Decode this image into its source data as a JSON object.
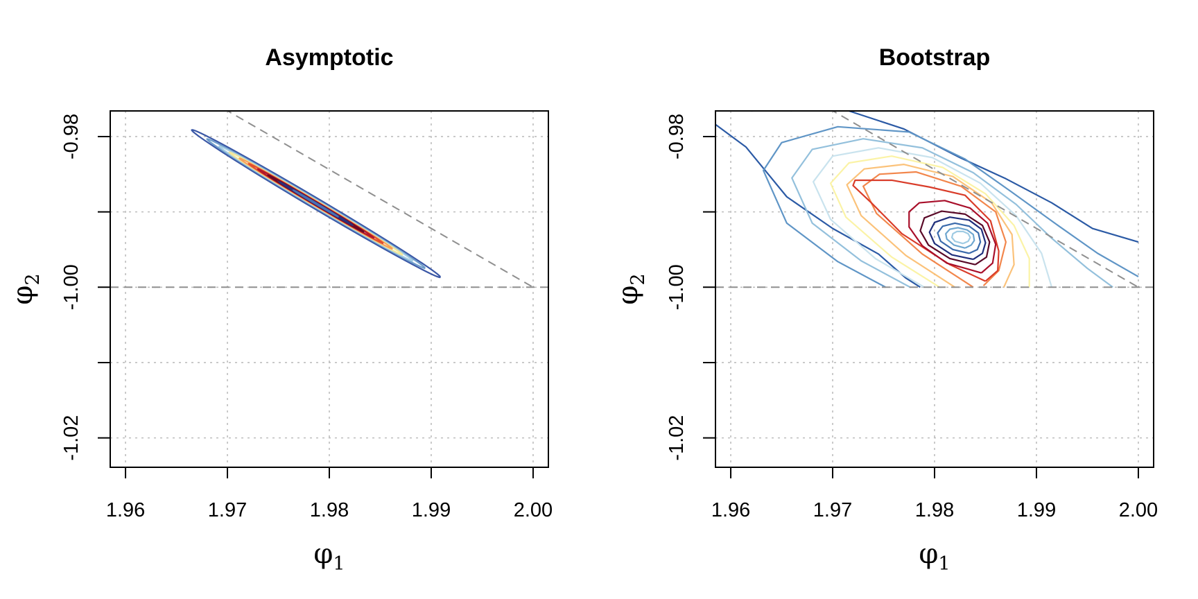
{
  "chart_data": [
    {
      "type": "contour",
      "title": "Asymptotic",
      "xlabel": {
        "base": "φ",
        "sub": "1"
      },
      "ylabel": {
        "base": "φ",
        "sub": "2"
      },
      "xlim": [
        1.9585,
        2.0015
      ],
      "ylim": [
        -1.0239,
        -0.9766
      ],
      "xticks": [
        1.96,
        1.97,
        1.98,
        1.99,
        2.0
      ],
      "xtick_labels": [
        "1.96",
        "1.97",
        "1.98",
        "1.99",
        "2.00"
      ],
      "yticks": [
        -0.98,
        -0.99,
        -1.0,
        -1.01,
        -1.02
      ],
      "ytick_labels": [
        "-0.98",
        "",
        "-1.00",
        "",
        "-1.02"
      ],
      "grid": true,
      "reference_lines": [
        {
          "type": "segment",
          "from": [
            1.9685,
            -0.9754
          ],
          "to": [
            2.0,
            -1.0
          ]
        },
        {
          "type": "hline",
          "y": -1.0
        }
      ],
      "level_colors": [
        "#3a57a6",
        "#6d9cc9",
        "#a5cde3",
        "#f3e89a",
        "#f6a25c",
        "#e1502f",
        "#b2182b",
        "#6a0a24",
        "#2d2f7a",
        "#4a71b3"
      ],
      "contours": [
        {
          "level": 1,
          "shape": "ellipse",
          "center": [
            1.9787,
            -0.9889
          ],
          "half_major_x": 0.0122,
          "half_width_y": 0.0008
        },
        {
          "level": 2,
          "shape": "ellipse",
          "center": [
            1.9787,
            -0.9889
          ],
          "half_major_x": 0.0107,
          "half_width_y": 0.0006
        },
        {
          "level": 3,
          "shape": "ellipse",
          "center": [
            1.9787,
            -0.9889
          ],
          "half_major_x": 0.0095,
          "half_width_y": 0.0005
        },
        {
          "level": 4,
          "shape": "ellipse",
          "center": [
            1.9787,
            -0.9889
          ],
          "half_major_x": 0.0085,
          "half_width_y": 0.00042
        },
        {
          "level": 5,
          "shape": "ellipse",
          "center": [
            1.9787,
            -0.9889
          ],
          "half_major_x": 0.0075,
          "half_width_y": 0.00036
        },
        {
          "level": 6,
          "shape": "ellipse",
          "center": [
            1.9787,
            -0.9889
          ],
          "half_major_x": 0.0066,
          "half_width_y": 0.0003
        },
        {
          "level": 7,
          "shape": "ellipse",
          "center": [
            1.9787,
            -0.9889
          ],
          "half_major_x": 0.0057,
          "half_width_y": 0.00025
        },
        {
          "level": 8,
          "shape": "ellipse",
          "center": [
            1.9787,
            -0.9889
          ],
          "half_major_x": 0.0047,
          "half_width_y": 0.0002
        },
        {
          "level": 9,
          "shape": "ellipse",
          "center": [
            1.9787,
            -0.9889
          ],
          "half_major_x": 0.0036,
          "half_width_y": 0.00014
        },
        {
          "level": 10,
          "shape": "ellipse",
          "center": [
            1.9787,
            -0.9889
          ],
          "half_major_x": 0.0022,
          "half_width_y": 8e-05
        }
      ]
    },
    {
      "type": "contour",
      "title": "Bootstrap",
      "xlabel": {
        "base": "φ",
        "sub": "1"
      },
      "ylabel": {
        "base": "φ",
        "sub": "2"
      },
      "xlim": [
        1.9585,
        2.0015
      ],
      "ylim": [
        -1.0239,
        -0.9766
      ],
      "xticks": [
        1.96,
        1.97,
        1.98,
        1.99,
        2.0
      ],
      "xtick_labels": [
        "1.96",
        "1.97",
        "1.98",
        "1.99",
        "2.00"
      ],
      "yticks": [
        -0.98,
        -0.99,
        -1.0,
        -1.01,
        -1.02
      ],
      "ytick_labels": [
        "-0.98",
        "",
        "-1.00",
        "",
        "-1.02"
      ],
      "grid": true,
      "reference_lines": [
        {
          "type": "segment",
          "from": [
            1.9685,
            -0.9754
          ],
          "to": [
            2.0,
            -1.0
          ]
        },
        {
          "type": "hline",
          "y": -1.0
        }
      ],
      "level_colors": [
        "#2b5aa5",
        "#5f95c6",
        "#93c0dc",
        "#c9e3ee",
        "#fbf3a6",
        "#fbc27a",
        "#f2864b",
        "#d93c29",
        "#a80f2a",
        "#5a0a28",
        "#1f2f7c",
        "#3a6aab",
        "#6ea6cf",
        "#9fcbe3"
      ],
      "contours": [
        {
          "level": 1,
          "points": [
            [
              1.9585,
              -0.9784
            ],
            [
              1.9615,
              -0.9814
            ],
            [
              1.9655,
              -0.988
            ],
            [
              1.97,
              -0.9922
            ],
            [
              1.9745,
              -0.9956
            ],
            [
              1.9772,
              -0.9988
            ],
            [
              1.9786,
              -1.0
            ]
          ]
        },
        {
          "level": 1,
          "points": [
            [
              1.9716,
              -0.9766
            ],
            [
              1.977,
              -0.979
            ],
            [
              1.9825,
              -0.9828
            ],
            [
              1.987,
              -0.9856
            ],
            [
              1.9915,
              -0.9888
            ],
            [
              1.9955,
              -0.9922
            ],
            [
              2.0,
              -0.994
            ]
          ]
        },
        {
          "level": 1,
          "points": [
            [
              1.962,
              -0.9766
            ],
            [
              1.964,
              -0.9765
            ],
            [
              1.966,
              -0.9766
            ]
          ]
        },
        {
          "level": 2,
          "points": [
            [
              1.9752,
              -1.0
            ],
            [
              1.9705,
              -0.9966
            ],
            [
              1.9655,
              -0.9915
            ],
            [
              1.9632,
              -0.9845
            ],
            [
              1.965,
              -0.9808
            ],
            [
              1.9705,
              -0.9787
            ],
            [
              1.9775,
              -0.9794
            ],
            [
              1.983,
              -0.983
            ],
            [
              1.9875,
              -0.9873
            ],
            [
              1.9918,
              -0.9915
            ],
            [
              1.996,
              -0.9955
            ],
            [
              2.0,
              -0.9986
            ]
          ]
        },
        {
          "level": 3,
          "points": [
            [
              1.9776,
              -1.0
            ],
            [
              1.9728,
              -0.9965
            ],
            [
              1.968,
              -0.9915
            ],
            [
              1.966,
              -0.9855
            ],
            [
              1.968,
              -0.9817
            ],
            [
              1.973,
              -0.9803
            ],
            [
              1.9788,
              -0.9815
            ],
            [
              1.9838,
              -0.9848
            ],
            [
              1.988,
              -0.989
            ],
            [
              1.9915,
              -0.9935
            ],
            [
              1.995,
              -0.9975
            ],
            [
              1.9975,
              -1.0
            ]
          ]
        },
        {
          "level": 4,
          "points": [
            [
              1.979,
              -1.0
            ],
            [
              1.9742,
              -0.9962
            ],
            [
              1.9698,
              -0.991
            ],
            [
              1.9681,
              -0.986
            ],
            [
              1.97,
              -0.9826
            ],
            [
              1.9745,
              -0.9815
            ],
            [
              1.9798,
              -0.9828
            ],
            [
              1.9845,
              -0.9862
            ],
            [
              1.988,
              -0.9905
            ],
            [
              1.9905,
              -0.9955
            ],
            [
              1.9915,
              -1.0
            ]
          ]
        },
        {
          "level": 5,
          "points": [
            [
              1.9805,
              -1.0
            ],
            [
              1.9758,
              -0.996
            ],
            [
              1.9713,
              -0.9907
            ],
            [
              1.9698,
              -0.9862
            ],
            [
              1.9716,
              -0.9835
            ],
            [
              1.9758,
              -0.9826
            ],
            [
              1.9808,
              -0.9841
            ],
            [
              1.985,
              -0.9876
            ],
            [
              1.9878,
              -0.9918
            ],
            [
              1.9893,
              -0.9962
            ],
            [
              1.9893,
              -1.0
            ]
          ]
        },
        {
          "level": 6,
          "points": [
            [
              1.982,
              -1.0
            ],
            [
              1.9772,
              -0.9958
            ],
            [
              1.9728,
              -0.9905
            ],
            [
              1.9714,
              -0.9864
            ],
            [
              1.9731,
              -0.9843
            ],
            [
              1.977,
              -0.9837
            ],
            [
              1.9818,
              -0.9853
            ],
            [
              1.9856,
              -0.9888
            ],
            [
              1.9876,
              -0.993
            ],
            [
              1.9878,
              -0.997
            ],
            [
              1.9868,
              -1.0
            ]
          ]
        },
        {
          "level": 7,
          "points": [
            [
              1.9838,
              -1.0
            ],
            [
              1.9788,
              -0.9956
            ],
            [
              1.9743,
              -0.9902
            ],
            [
              1.973,
              -0.9866
            ],
            [
              1.9746,
              -0.985
            ],
            [
              1.9782,
              -0.9847
            ],
            [
              1.9826,
              -0.9866
            ],
            [
              1.986,
              -0.99
            ],
            [
              1.987,
              -0.994
            ],
            [
              1.9863,
              -0.9978
            ],
            [
              1.9848,
              -0.9998
            ]
          ]
        },
        {
          "level": 8,
          "points": [
            [
              1.985,
              -0.9992
            ],
            [
              1.9815,
              -0.997
            ],
            [
              1.9768,
              -0.9929
            ],
            [
              1.9738,
              -0.9888
            ],
            [
              1.972,
              -0.9865
            ],
            [
              1.9722,
              -0.9858
            ],
            [
              1.9758,
              -0.9858
            ],
            [
              1.9795,
              -0.9867
            ],
            [
              1.983,
              -0.9878
            ],
            [
              1.9855,
              -0.9912
            ],
            [
              1.9863,
              -0.9952
            ],
            [
              1.9862,
              -0.9978
            ],
            [
              1.985,
              -0.9992
            ]
          ]
        },
        {
          "level": 9,
          "points": [
            [
              1.9846,
              -0.9981
            ],
            [
              1.9812,
              -0.9968
            ],
            [
              1.9788,
              -0.9945
            ],
            [
              1.9775,
              -0.992
            ],
            [
              1.9775,
              -0.99
            ],
            [
              1.9785,
              -0.9888
            ],
            [
              1.981,
              -0.9885
            ],
            [
              1.9835,
              -0.9895
            ],
            [
              1.9852,
              -0.9915
            ],
            [
              1.986,
              -0.9943
            ],
            [
              1.9857,
              -0.9968
            ],
            [
              1.9846,
              -0.9981
            ]
          ]
        },
        {
          "level": 10,
          "points": [
            [
              1.984,
              -0.997
            ],
            [
              1.9815,
              -0.9962
            ],
            [
              1.9794,
              -0.9944
            ],
            [
              1.9786,
              -0.9925
            ],
            [
              1.979,
              -0.9908
            ],
            [
              1.9807,
              -0.9899
            ],
            [
              1.983,
              -0.9903
            ],
            [
              1.9847,
              -0.9918
            ],
            [
              1.9854,
              -0.994
            ],
            [
              1.9851,
              -0.996
            ],
            [
              1.984,
              -0.997
            ]
          ]
        },
        {
          "level": 11,
          "points": [
            [
              1.9838,
              -0.9963
            ],
            [
              1.9817,
              -0.9957
            ],
            [
              1.98,
              -0.9942
            ],
            [
              1.9795,
              -0.9927
            ],
            [
              1.98,
              -0.9914
            ],
            [
              1.9815,
              -0.9907
            ],
            [
              1.9834,
              -0.9911
            ],
            [
              1.9846,
              -0.9923
            ],
            [
              1.985,
              -0.9941
            ],
            [
              1.9847,
              -0.9955
            ],
            [
              1.9838,
              -0.9963
            ]
          ]
        },
        {
          "level": 12,
          "points": [
            [
              1.9834,
              -0.9955
            ],
            [
              1.9818,
              -0.995
            ],
            [
              1.9806,
              -0.9939
            ],
            [
              1.9803,
              -0.9928
            ],
            [
              1.9808,
              -0.9919
            ],
            [
              1.982,
              -0.9915
            ],
            [
              1.9834,
              -0.9919
            ],
            [
              1.9843,
              -0.9928
            ],
            [
              1.9845,
              -0.994
            ],
            [
              1.9842,
              -0.995
            ],
            [
              1.9834,
              -0.9955
            ]
          ]
        },
        {
          "level": 13,
          "points": [
            [
              1.983,
              -0.9948
            ],
            [
              1.9819,
              -0.9944
            ],
            [
              1.9812,
              -0.9936
            ],
            [
              1.9811,
              -0.9929
            ],
            [
              1.9815,
              -0.9923
            ],
            [
              1.9823,
              -0.9921
            ],
            [
              1.9832,
              -0.9924
            ],
            [
              1.9838,
              -0.993
            ],
            [
              1.9839,
              -0.9938
            ],
            [
              1.9836,
              -0.9944
            ],
            [
              1.983,
              -0.9948
            ]
          ]
        },
        {
          "level": 14,
          "points": [
            [
              1.9828,
              -0.9942
            ],
            [
              1.982,
              -0.9939
            ],
            [
              1.9817,
              -0.9934
            ],
            [
              1.9818,
              -0.9929
            ],
            [
              1.9822,
              -0.9926
            ],
            [
              1.9828,
              -0.9926
            ],
            [
              1.9833,
              -0.9929
            ],
            [
              1.9835,
              -0.9934
            ],
            [
              1.9833,
              -0.9939
            ],
            [
              1.9828,
              -0.9942
            ]
          ]
        }
      ]
    }
  ]
}
